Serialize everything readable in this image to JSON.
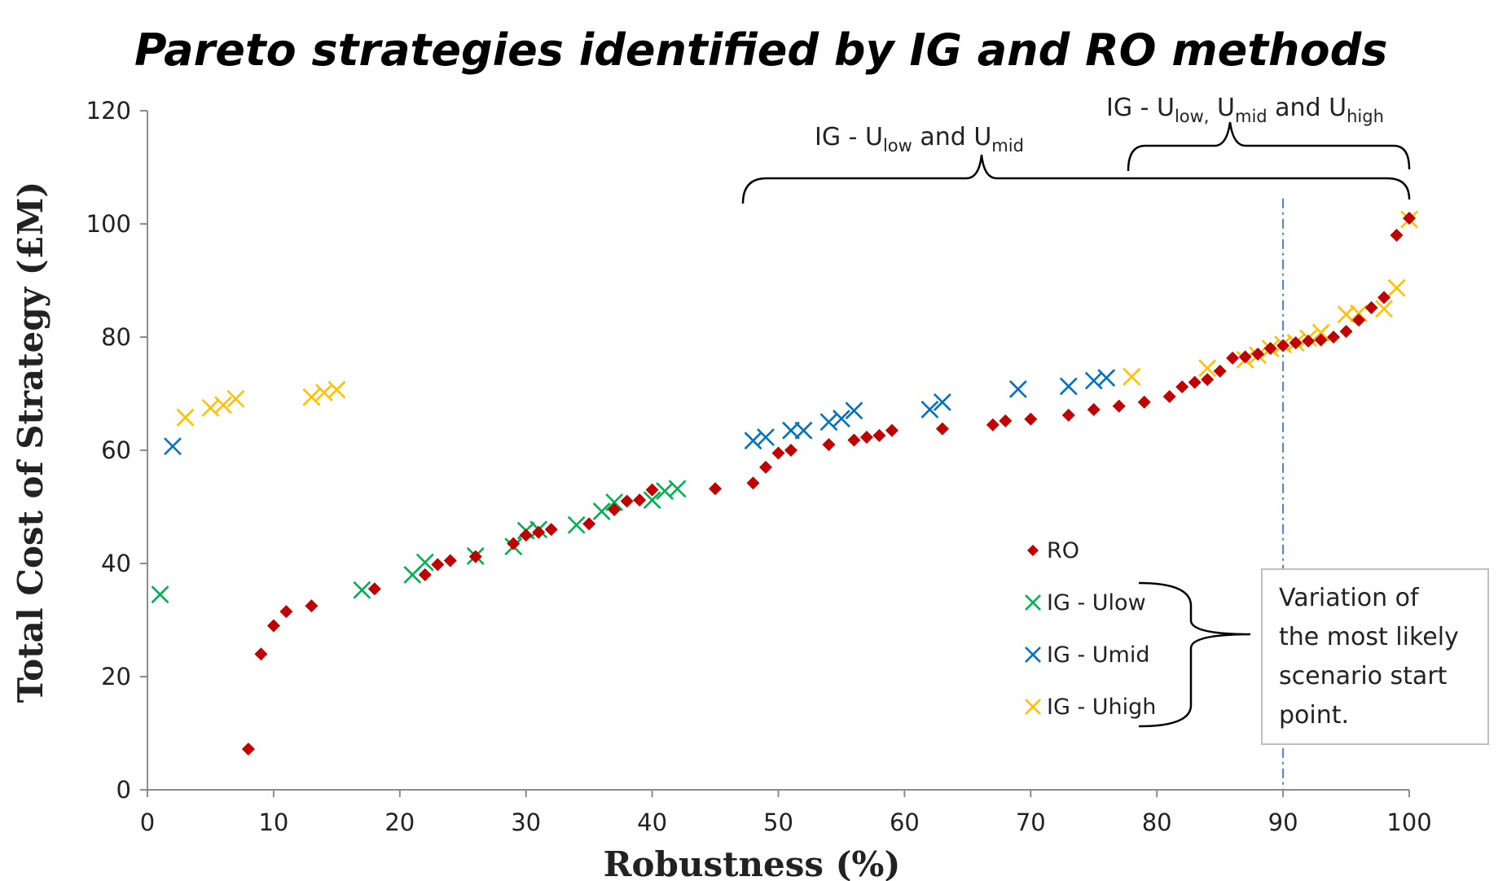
{
  "chart_data": {
    "type": "scatter",
    "title": "Pareto strategies identified by IG and RO methods",
    "xlabel": "Robustness (%)",
    "ylabel": "Total Cost of Strategy (£M)",
    "xlim": [
      0,
      100
    ],
    "ylim": [
      0,
      120
    ],
    "xticks": [
      "0",
      "10",
      "20",
      "30",
      "40",
      "50",
      "60",
      "70",
      "80",
      "90",
      "100"
    ],
    "yticks": [
      "0",
      "20",
      "40",
      "60",
      "80",
      "100",
      "120"
    ],
    "grid": false,
    "legend_position": "center-right",
    "series": [
      {
        "name": "RO",
        "marker": "diamond",
        "color": "#c00000",
        "points": [
          [
            8,
            7.2
          ],
          [
            9,
            24
          ],
          [
            10,
            29
          ],
          [
            11,
            31.5
          ],
          [
            13,
            32.5
          ],
          [
            18,
            35.5
          ],
          [
            22,
            38
          ],
          [
            23,
            39.8
          ],
          [
            24,
            40.5
          ],
          [
            26,
            41.2
          ],
          [
            29,
            43.5
          ],
          [
            30,
            45
          ],
          [
            31,
            45.5
          ],
          [
            32,
            46
          ],
          [
            35,
            47
          ],
          [
            37,
            49.5
          ],
          [
            38,
            51
          ],
          [
            39,
            51.2
          ],
          [
            40,
            53
          ],
          [
            45,
            53.2
          ],
          [
            48,
            54.2
          ],
          [
            49,
            57
          ],
          [
            50,
            59.5
          ],
          [
            51,
            60
          ],
          [
            54,
            61
          ],
          [
            56,
            61.8
          ],
          [
            57,
            62.3
          ],
          [
            58,
            62.6
          ],
          [
            59,
            63.5
          ],
          [
            63,
            63.8
          ],
          [
            67,
            64.5
          ],
          [
            68,
            65.2
          ],
          [
            70,
            65.5
          ],
          [
            73,
            66.2
          ],
          [
            75,
            67.2
          ],
          [
            77,
            67.8
          ],
          [
            79,
            68.5
          ],
          [
            81,
            69.5
          ],
          [
            82,
            71.2
          ],
          [
            83,
            72
          ],
          [
            84,
            72.5
          ],
          [
            85,
            74
          ],
          [
            86,
            76.3
          ],
          [
            87,
            76.5
          ],
          [
            88,
            77
          ],
          [
            89,
            78
          ],
          [
            90,
            78.5
          ],
          [
            91,
            79
          ],
          [
            92,
            79.3
          ],
          [
            93,
            79.5
          ],
          [
            94,
            80
          ],
          [
            95,
            81
          ],
          [
            96,
            83
          ],
          [
            97,
            85.2
          ],
          [
            98,
            87
          ],
          [
            99,
            98
          ],
          [
            100,
            101
          ]
        ]
      },
      {
        "name": "IG - Ulow",
        "marker": "x",
        "color": "#00b050",
        "points": [
          [
            1,
            34.5
          ],
          [
            17,
            35.3
          ],
          [
            21,
            38
          ],
          [
            22,
            40.2
          ],
          [
            26,
            41.3
          ],
          [
            29,
            43
          ],
          [
            30,
            45.8
          ],
          [
            31,
            46
          ],
          [
            34,
            46.8
          ],
          [
            36,
            49.2
          ],
          [
            37,
            50.8
          ],
          [
            40,
            51.2
          ],
          [
            41,
            52.8
          ],
          [
            42,
            53.2
          ]
        ]
      },
      {
        "name": "IG - Umid",
        "marker": "x",
        "color": "#0070c0",
        "points": [
          [
            2,
            60.7
          ],
          [
            48,
            61.7
          ],
          [
            49,
            62.3
          ],
          [
            51,
            63.5
          ],
          [
            52,
            63.5
          ],
          [
            54,
            65
          ],
          [
            55,
            65.6
          ],
          [
            56,
            67
          ],
          [
            62,
            67.2
          ],
          [
            63,
            68.5
          ],
          [
            69,
            70.8
          ],
          [
            73,
            71.3
          ],
          [
            75,
            72.3
          ],
          [
            76,
            72.8
          ]
        ]
      },
      {
        "name": "IG - Uhigh",
        "marker": "x",
        "color": "#ffc000",
        "points": [
          [
            3,
            65.8
          ],
          [
            5,
            67.5
          ],
          [
            6,
            68
          ],
          [
            7,
            69.1
          ],
          [
            13,
            69.4
          ],
          [
            14,
            70.2
          ],
          [
            15,
            70.7
          ],
          [
            78,
            73
          ],
          [
            84,
            74.5
          ],
          [
            87,
            76
          ],
          [
            88,
            76.8
          ],
          [
            89,
            78
          ],
          [
            90,
            78.7
          ],
          [
            91,
            79
          ],
          [
            92,
            79.8
          ],
          [
            93,
            80.8
          ],
          [
            95,
            84
          ],
          [
            96,
            84.2
          ],
          [
            98,
            85
          ],
          [
            99,
            88.7
          ],
          [
            100,
            100.8
          ]
        ]
      }
    ],
    "reference_line": {
      "x": 90,
      "style": "dash-dot",
      "color": "#4f81bd"
    },
    "annotations": {
      "brace_low_mid": {
        "prefix": "IG - U",
        "sub1": "low",
        "middle": " and U",
        "sub2": "mid",
        "x_from": 47.5,
        "x_to": 100
      },
      "brace_all": {
        "prefix": "IG - U",
        "sub1": "low,",
        "middle1": " U",
        "sub2": "mid",
        "middle2": " and U",
        "sub3": "high",
        "x_from": 78,
        "x_to": 100
      },
      "note_lines": [
        "Variation of",
        "the most likely",
        "scenario start",
        "point."
      ]
    }
  }
}
